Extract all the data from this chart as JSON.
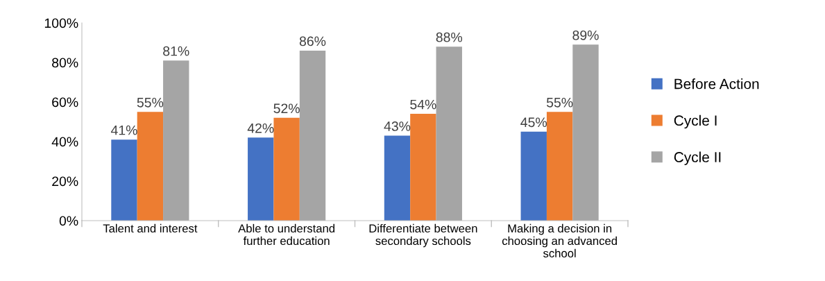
{
  "chart_data": {
    "type": "bar",
    "categories": [
      "Talent and interest",
      "Able to understand\nfurther education",
      "Differentiate between\nsecondary schools",
      "Making a decision in\nchoosing an advanced\nschool"
    ],
    "series": [
      {
        "name": "Before Action",
        "color": "#4472c4",
        "values": [
          41,
          42,
          43,
          45
        ],
        "value_labels": [
          "41%",
          "42%",
          "43%",
          "45%"
        ]
      },
      {
        "name": "Cycle I",
        "color": "#ed7d31",
        "values": [
          55,
          52,
          54,
          55
        ],
        "value_labels": [
          "55%",
          "52%",
          "54%",
          "55%"
        ]
      },
      {
        "name": "Cycle II",
        "color": "#a5a5a5",
        "values": [
          81,
          86,
          88,
          89
        ],
        "value_labels": [
          "81%",
          "86%",
          "88%",
          "89%"
        ]
      }
    ],
    "ylim": [
      0,
      100
    ],
    "yticks": [
      {
        "value": 0,
        "label": "0%"
      },
      {
        "value": 20,
        "label": "20%"
      },
      {
        "value": 40,
        "label": "40%"
      },
      {
        "value": 60,
        "label": "60%"
      },
      {
        "value": 80,
        "label": "80%"
      },
      {
        "value": 100,
        "label": "100%"
      }
    ],
    "grid": false,
    "legend": "right"
  }
}
